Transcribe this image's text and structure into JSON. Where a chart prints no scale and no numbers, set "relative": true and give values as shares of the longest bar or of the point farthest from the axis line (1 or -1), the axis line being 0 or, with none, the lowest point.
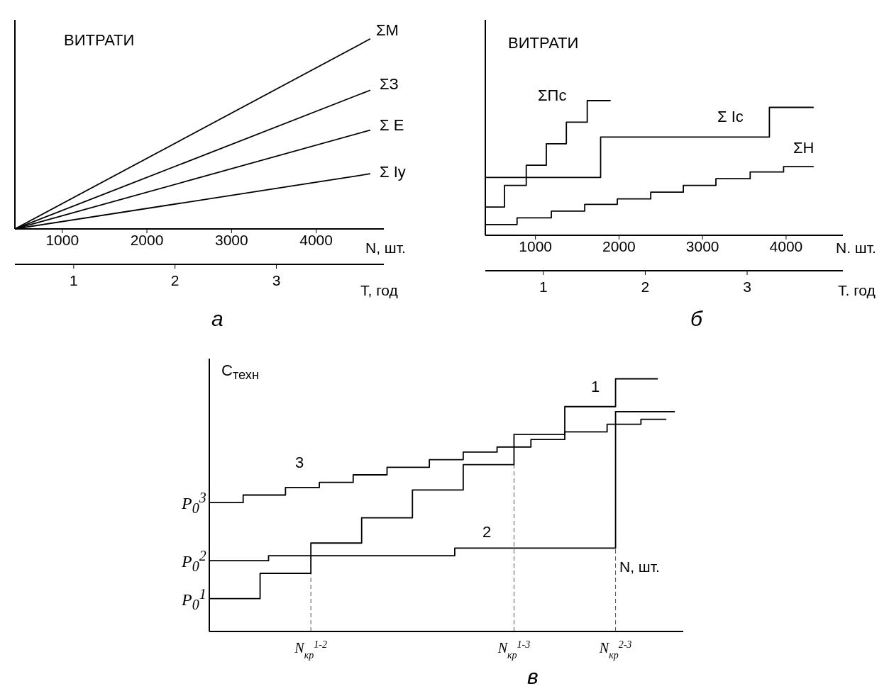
{
  "chart_data": [
    {
      "type": "line",
      "ylabel": "ВИТРАТИ",
      "xlabel": "N, шт.",
      "x2label": "Т, год",
      "relative": true,
      "xlim": [
        440,
        4800
      ],
      "xticks": [
        1000,
        2000,
        3000,
        4000
      ],
      "x2lim": [
        0.42,
        4.06
      ],
      "x2ticks": [
        1,
        2,
        3
      ],
      "marker": "none",
      "annotations": [
        "а"
      ],
      "series": [
        {
          "name": "ΣМ",
          "color": "#000000",
          "x": [
            440,
            4640
          ],
          "values": [
            0,
            1
          ]
        },
        {
          "name": "ΣЗ",
          "color": "#000000",
          "x": [
            440,
            4640
          ],
          "values": [
            0,
            0.73
          ]
        },
        {
          "name": "Σ Е",
          "color": "#000000",
          "x": [
            440,
            4640
          ],
          "values": [
            0,
            0.52
          ]
        },
        {
          "name": "Σ Іу",
          "color": "#000000",
          "x": [
            440,
            4640
          ],
          "values": [
            0,
            0.29
          ]
        }
      ]
    },
    {
      "type": "step",
      "ylabel": "ВИТРАТИ",
      "xlabel": "N. шт.",
      "x2label": "Т. год",
      "relative": true,
      "xlim": [
        400,
        4680
      ],
      "xticks": [
        1000,
        2000,
        3000,
        4000
      ],
      "x2lim": [
        0.43,
        3.94
      ],
      "x2ticks": [
        1,
        2,
        3
      ],
      "marker": "none",
      "annotations": [
        "б"
      ],
      "series": [
        {
          "name": "ΣПс",
          "color": "#000000",
          "x": [
            400,
            630,
            890,
            1130,
            1370,
            1620,
            1900
          ],
          "values": [
            0.21,
            0.37,
            0.52,
            0.68,
            0.84,
            1,
            1
          ]
        },
        {
          "name": "Σ Іс",
          "color": "#000000",
          "x": [
            400,
            1780,
            3800,
            4330
          ],
          "values": [
            0.43,
            0.73,
            0.95,
            0.95
          ]
        },
        {
          "name": "ΣН",
          "color": "#000000",
          "x": [
            400,
            780,
            1190,
            1590,
            1980,
            2380,
            2770,
            3160,
            3570,
            3970,
            4330
          ],
          "values": [
            0.08,
            0.13,
            0.18,
            0.23,
            0.27,
            0.32,
            0.37,
            0.42,
            0.47,
            0.51,
            0.51
          ]
        }
      ]
    },
    {
      "type": "step",
      "ylabel": "C$_{техн}$",
      "xlabel": "N, шт.",
      "relative": true,
      "marker": "none",
      "categories": [
        null,
        null,
        null,
        null,
        null,
        null,
        null,
        null,
        null,
        null,
        null,
        null,
        "N$_{кр}$$^{1-2}$",
        null,
        null,
        null,
        null,
        null,
        null,
        null,
        null,
        null,
        null,
        null,
        null,
        null,
        null,
        null,
        null,
        null,
        null,
        null,
        null,
        null,
        null,
        null,
        "N$_{кр}$$^{1-3}$",
        null,
        null,
        null,
        null,
        null,
        null,
        null,
        null,
        null,
        null,
        null,
        "N$_{кр}$$^{2-3}$",
        null,
        null,
        null,
        null,
        null,
        null,
        null
      ],
      "series": [
        {
          "name": "1",
          "color": "#000000",
          "values": [
            0.13,
            0.13,
            0.13,
            0.13,
            0.13,
            0.13,
            0.23,
            0.23,
            0.23,
            0.23,
            0.23,
            0.23,
            0.35,
            0.35,
            0.35,
            0.35,
            0.35,
            0.35,
            0.45,
            0.45,
            0.45,
            0.45,
            0.45,
            0.45,
            0.56,
            0.56,
            0.56,
            0.56,
            0.56,
            0.56,
            0.66,
            0.66,
            0.66,
            0.66,
            0.66,
            0.66,
            0.78,
            0.78,
            0.78,
            0.78,
            0.78,
            0.78,
            0.89,
            0.89,
            0.89,
            0.89,
            0.89,
            0.89,
            1,
            1,
            1,
            1,
            1,
            1,
            null,
            null
          ]
        },
        {
          "name": "2",
          "color": "#000000",
          "values": [
            0.28,
            0.28,
            0.28,
            0.28,
            0.28,
            0.28,
            0.28,
            0.3,
            0.3,
            0.3,
            0.3,
            0.3,
            0.3,
            0.3,
            0.3,
            0.3,
            0.3,
            0.3,
            0.3,
            0.3,
            0.3,
            0.3,
            0.3,
            0.3,
            0.3,
            0.3,
            0.3,
            0.3,
            0.3,
            0.33,
            0.33,
            0.33,
            0.33,
            0.33,
            0.33,
            0.33,
            0.33,
            0.33,
            0.33,
            0.33,
            0.33,
            0.33,
            0.33,
            0.33,
            0.33,
            0.33,
            0.33,
            0.33,
            0.87,
            0.87,
            0.87,
            0.87,
            0.87,
            0.87,
            0.87,
            0.87
          ]
        },
        {
          "name": "3",
          "color": "#000000",
          "values": [
            0.51,
            0.51,
            0.51,
            0.51,
            0.54,
            0.54,
            0.54,
            0.54,
            0.54,
            0.57,
            0.57,
            0.57,
            0.57,
            0.59,
            0.59,
            0.59,
            0.59,
            0.62,
            0.62,
            0.62,
            0.62,
            0.65,
            0.65,
            0.65,
            0.65,
            0.65,
            0.68,
            0.68,
            0.68,
            0.68,
            0.71,
            0.71,
            0.71,
            0.71,
            0.73,
            0.73,
            0.73,
            0.73,
            0.76,
            0.76,
            0.76,
            0.76,
            0.79,
            0.79,
            0.79,
            0.79,
            0.79,
            0.82,
            0.82,
            0.82,
            0.82,
            0.84,
            0.84,
            0.84,
            0.84,
            null
          ]
        }
      ],
      "ref_lines": [
        {
          "axis": "x",
          "value": "N$_{кр}$$^{1-2}$",
          "line_style": "dashed"
        },
        {
          "axis": "x",
          "value": "N$_{кр}$$^{1-3}$",
          "line_style": "dashed"
        },
        {
          "axis": "x",
          "value": "N$_{кр}$$^{2-3}$",
          "line_style": "dashed"
        }
      ],
      "annotations": [
        "P$_{0}$$^{3}$",
        "P$_{0}$$^{2}$",
        "P$_{0}$$^{1}$",
        "в"
      ]
    }
  ]
}
